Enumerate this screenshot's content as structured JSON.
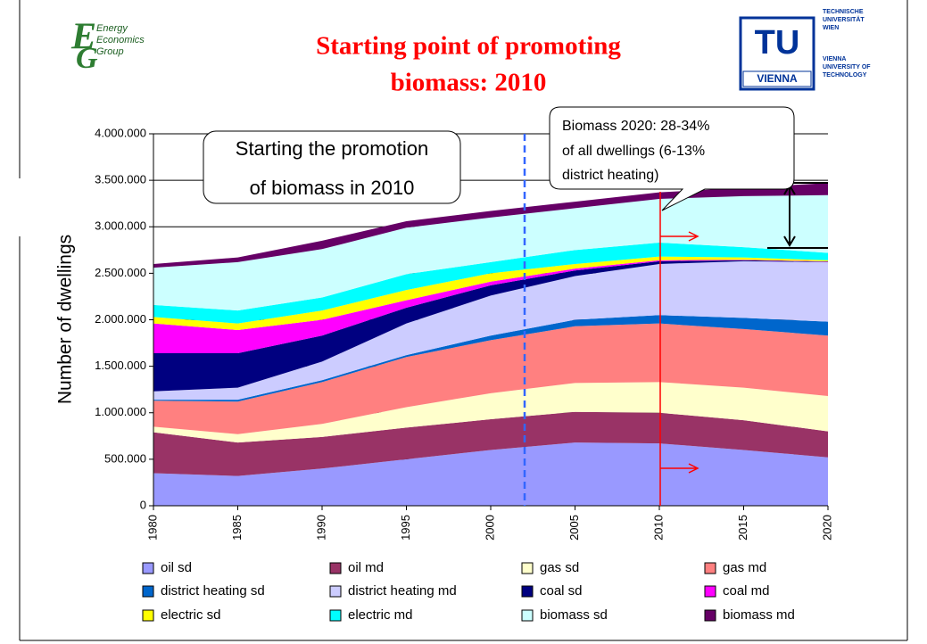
{
  "header": {
    "logo_lines": [
      "Energy",
      "Economics",
      "Group"
    ],
    "title_lines": [
      "Starting point of promoting",
      "biomass: 2010"
    ],
    "tu_logo": "TU",
    "tu_sub": "VIENNA",
    "tu_lines": [
      "TECHNISCHE",
      "UNIVERSITÄT",
      "WIEN",
      "VIENNA",
      "UNIVERSITY OF",
      "TECHNOLOGY"
    ]
  },
  "chart_data": {
    "type": "stacked_area",
    "ylabel": "Number of dwellings",
    "x": [
      1980,
      1985,
      1990,
      1995,
      2000,
      2005,
      2010,
      2015,
      2020
    ],
    "xlim": [
      1980,
      2020
    ],
    "xticks": [
      1980,
      1985,
      1990,
      1995,
      2000,
      2005,
      2010,
      2015,
      2020
    ],
    "ylim": [
      0,
      4000000
    ],
    "yticks": [
      {
        "value": 0,
        "label": "0"
      },
      {
        "value": 500000,
        "label": "500.000"
      },
      {
        "value": 1000000,
        "label": "1.000.000"
      },
      {
        "value": 1500000,
        "label": "1.500.000"
      },
      {
        "value": 2000000,
        "label": "2.000.000"
      },
      {
        "value": 2500000,
        "label": "2.500.000"
      },
      {
        "value": 3000000,
        "label": "3.000.000"
      },
      {
        "value": 3500000,
        "label": "3.500.000"
      },
      {
        "value": 4000000,
        "label": "4.000.000"
      }
    ],
    "grid": true,
    "series": [
      {
        "name": "oil sd",
        "color": "#9999ff",
        "values": [
          350000,
          320000,
          400000,
          500000,
          600000,
          680000,
          670000,
          600000,
          520000
        ]
      },
      {
        "name": "oil md",
        "color": "#993366",
        "values": [
          440000,
          360000,
          340000,
          340000,
          330000,
          330000,
          330000,
          320000,
          280000
        ]
      },
      {
        "name": "gas sd",
        "color": "#ffffcc",
        "values": [
          60000,
          90000,
          140000,
          220000,
          280000,
          310000,
          330000,
          350000,
          380000
        ]
      },
      {
        "name": "gas md",
        "color": "#ff8080",
        "values": [
          280000,
          350000,
          450000,
          540000,
          570000,
          610000,
          630000,
          630000,
          650000
        ]
      },
      {
        "name": "district heating sd",
        "color": "#0066cc",
        "values": [
          10000,
          20000,
          20000,
          20000,
          50000,
          70000,
          90000,
          120000,
          150000
        ]
      },
      {
        "name": "district heating md",
        "color": "#ccccff",
        "values": [
          90000,
          130000,
          200000,
          340000,
          430000,
          470000,
          550000,
          610000,
          640000
        ]
      },
      {
        "name": "coal sd",
        "color": "#000080",
        "values": [
          410000,
          370000,
          280000,
          170000,
          110000,
          60000,
          30000,
          10000,
          5000
        ]
      },
      {
        "name": "coal md",
        "color": "#ff00ff",
        "values": [
          320000,
          250000,
          170000,
          80000,
          40000,
          20000,
          10000,
          5000,
          3000
        ]
      },
      {
        "name": "electric sd",
        "color": "#ffff00",
        "values": [
          70000,
          70000,
          100000,
          110000,
          90000,
          50000,
          40000,
          25000,
          12000
        ]
      },
      {
        "name": "electric md",
        "color": "#00ffff",
        "values": [
          130000,
          140000,
          140000,
          170000,
          120000,
          150000,
          150000,
          110000,
          80000
        ]
      },
      {
        "name": "biomass sd",
        "color": "#ccffff",
        "values": [
          400000,
          520000,
          520000,
          500000,
          480000,
          450000,
          470000,
          550000,
          620000
        ]
      },
      {
        "name": "biomass md",
        "color": "#660066",
        "values": [
          40000,
          50000,
          90000,
          70000,
          70000,
          70000,
          70000,
          90000,
          130000
        ]
      }
    ],
    "annotations": [
      {
        "lines": [
          "Starting the promotion",
          "of biomass in 2010"
        ]
      },
      {
        "lines": [
          "Biomass 2020: 28-34%",
          "of all dwellings (6-13%",
          "district heating)"
        ]
      }
    ]
  }
}
